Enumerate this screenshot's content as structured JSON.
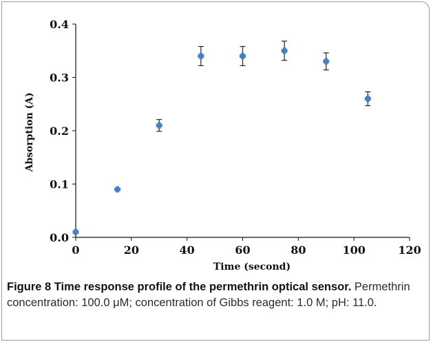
{
  "chart_data": {
    "type": "scatter",
    "xlabel": "Time (second)",
    "ylabel": "Absorption (A)",
    "xlim": [
      0,
      120
    ],
    "ylim": [
      0,
      0.4
    ],
    "x_ticks": [
      "0",
      "20",
      "40",
      "60",
      "80",
      "100",
      "120"
    ],
    "y_ticks": [
      "0.0",
      "0.1",
      "0.2",
      "0.3",
      "0.4"
    ],
    "grid": false,
    "marker_color": "#4a7ec2",
    "points": [
      {
        "x": 0,
        "y": 0.01,
        "err": 0.0
      },
      {
        "x": 15,
        "y": 0.09,
        "err": 0.0
      },
      {
        "x": 30,
        "y": 0.21,
        "err": 0.011
      },
      {
        "x": 45,
        "y": 0.34,
        "err": 0.018
      },
      {
        "x": 60,
        "y": 0.34,
        "err": 0.018
      },
      {
        "x": 75,
        "y": 0.35,
        "err": 0.018
      },
      {
        "x": 90,
        "y": 0.33,
        "err": 0.016
      },
      {
        "x": 105,
        "y": 0.26,
        "err": 0.013
      }
    ]
  },
  "caption": {
    "label": "Figure 8",
    "title": "Time response profile of the permethrin optical sensor.",
    "text": "Permethrin concentration: 100.0 μM; concentration of Gibbs reagent: 1.0 M; pH: 11.0."
  }
}
